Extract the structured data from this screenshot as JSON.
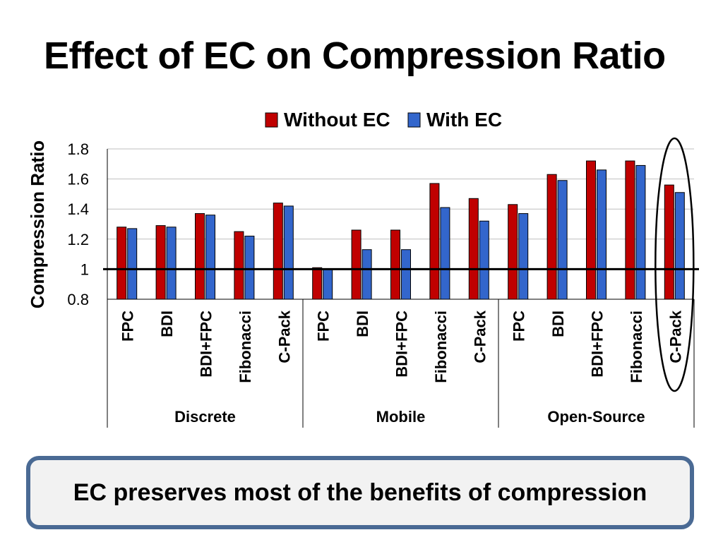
{
  "title": "Effect of EC on Compression Ratio",
  "callout": "EC preserves most of the benefits of compression",
  "colors": {
    "without": "#c00000",
    "with": "#3366cc",
    "highlight": "#000000"
  },
  "chart_data": {
    "type": "bar",
    "ylabel": "Compression Ratio",
    "ylim": [
      0.8,
      1.8
    ],
    "yticks": [
      0.8,
      1,
      1.2,
      1.4,
      1.6,
      1.8
    ],
    "reference_line": 1,
    "legend": "top",
    "groups": [
      {
        "name": "Discrete",
        "categories": [
          "FPC",
          "BDI",
          "BDI+FPC",
          "Fibonacci",
          "C-Pack"
        ]
      },
      {
        "name": "Mobile",
        "categories": [
          "FPC",
          "BDI",
          "BDI+FPC",
          "Fibonacci",
          "C-Pack"
        ]
      },
      {
        "name": "Open-Source",
        "categories": [
          "FPC",
          "BDI",
          "BDI+FPC",
          "Fibonacci",
          "C-Pack"
        ]
      }
    ],
    "series": [
      {
        "name": "Without EC",
        "values": [
          1.28,
          1.29,
          1.37,
          1.25,
          1.44,
          1.01,
          1.26,
          1.26,
          1.57,
          1.47,
          1.43,
          1.63,
          1.72,
          1.72,
          1.56
        ]
      },
      {
        "name": "With EC",
        "values": [
          1.27,
          1.28,
          1.36,
          1.22,
          1.42,
          1.0,
          1.13,
          1.13,
          1.41,
          1.32,
          1.37,
          1.59,
          1.66,
          1.69,
          1.51
        ]
      }
    ],
    "highlighted_category_index": 14
  }
}
